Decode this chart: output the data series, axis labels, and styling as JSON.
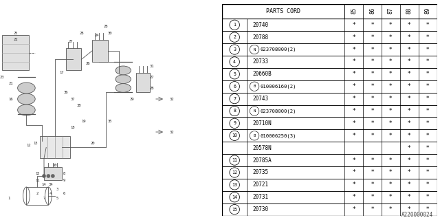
{
  "diagram_id": "A220000024",
  "table": {
    "rows": [
      {
        "num": "1",
        "part": "20740",
        "marks": [
          true,
          true,
          true,
          true,
          true
        ]
      },
      {
        "num": "2",
        "part": "20788",
        "marks": [
          true,
          true,
          true,
          true,
          true
        ]
      },
      {
        "num": "3",
        "part": "(N)023708000(2)",
        "marks": [
          true,
          true,
          true,
          true,
          true
        ]
      },
      {
        "num": "4",
        "part": "20733",
        "marks": [
          true,
          true,
          true,
          true,
          true
        ]
      },
      {
        "num": "5",
        "part": "20660B",
        "marks": [
          true,
          true,
          true,
          true,
          true
        ]
      },
      {
        "num": "6",
        "part": "(B)010006160(2)",
        "marks": [
          true,
          true,
          true,
          true,
          true
        ]
      },
      {
        "num": "7",
        "part": "20743",
        "marks": [
          true,
          true,
          true,
          true,
          true
        ]
      },
      {
        "num": "8",
        "part": "(N)023708000(2)",
        "marks": [
          true,
          true,
          true,
          true,
          true
        ]
      },
      {
        "num": "9",
        "part": "20710N",
        "marks": [
          true,
          true,
          true,
          true,
          true
        ]
      },
      {
        "num": "10",
        "part": "(B)010006250(3)",
        "marks": [
          true,
          true,
          true,
          true,
          true
        ]
      },
      {
        "num": "",
        "part": "20578N",
        "marks": [
          false,
          false,
          false,
          true,
          true
        ]
      },
      {
        "num": "11",
        "part": "20785A",
        "marks": [
          true,
          true,
          true,
          true,
          true
        ]
      },
      {
        "num": "12",
        "part": "20735",
        "marks": [
          true,
          true,
          true,
          true,
          true
        ]
      },
      {
        "num": "13",
        "part": "20721",
        "marks": [
          true,
          true,
          true,
          true,
          true
        ]
      },
      {
        "num": "14",
        "part": "20731",
        "marks": [
          true,
          true,
          true,
          true,
          true
        ]
      },
      {
        "num": "15",
        "part": "20730",
        "marks": [
          true,
          true,
          true,
          true,
          true
        ]
      }
    ]
  },
  "years": [
    "85",
    "86",
    "87",
    "88",
    "89"
  ],
  "bg_color": "#f5f5f5",
  "line_color": "#000000",
  "text_color": "#000000"
}
